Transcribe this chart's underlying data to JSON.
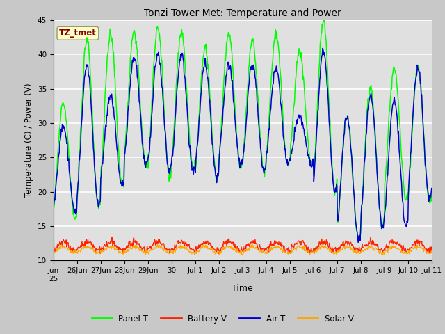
{
  "title": "Tonzi Tower Met: Temperature and Power",
  "xlabel": "Time",
  "ylabel": "Temperature (C) / Power (V)",
  "ylim": [
    10,
    45
  ],
  "yticks": [
    10,
    15,
    20,
    25,
    30,
    35,
    40,
    45
  ],
  "annotation": "TZ_tmet",
  "annotation_color": "#8B0000",
  "annotation_bg": "#FFFFCC",
  "bg_color": "#C8C8C8",
  "plot_bg": "#E0E0E0",
  "grid_color": "#FFFFFF",
  "panel_t_color": "#00FF00",
  "air_t_color": "#0000CC",
  "battery_v_color": "#FF2200",
  "solar_v_color": "#FFA500",
  "legend_labels": [
    "Panel T",
    "Battery V",
    "Air T",
    "Solar V"
  ],
  "legend_colors": [
    "#00FF00",
    "#FF2200",
    "#0000CC",
    "#FFA500"
  ],
  "n_days": 16,
  "samples_per_day": 48,
  "start_day_label": "Jun 25"
}
